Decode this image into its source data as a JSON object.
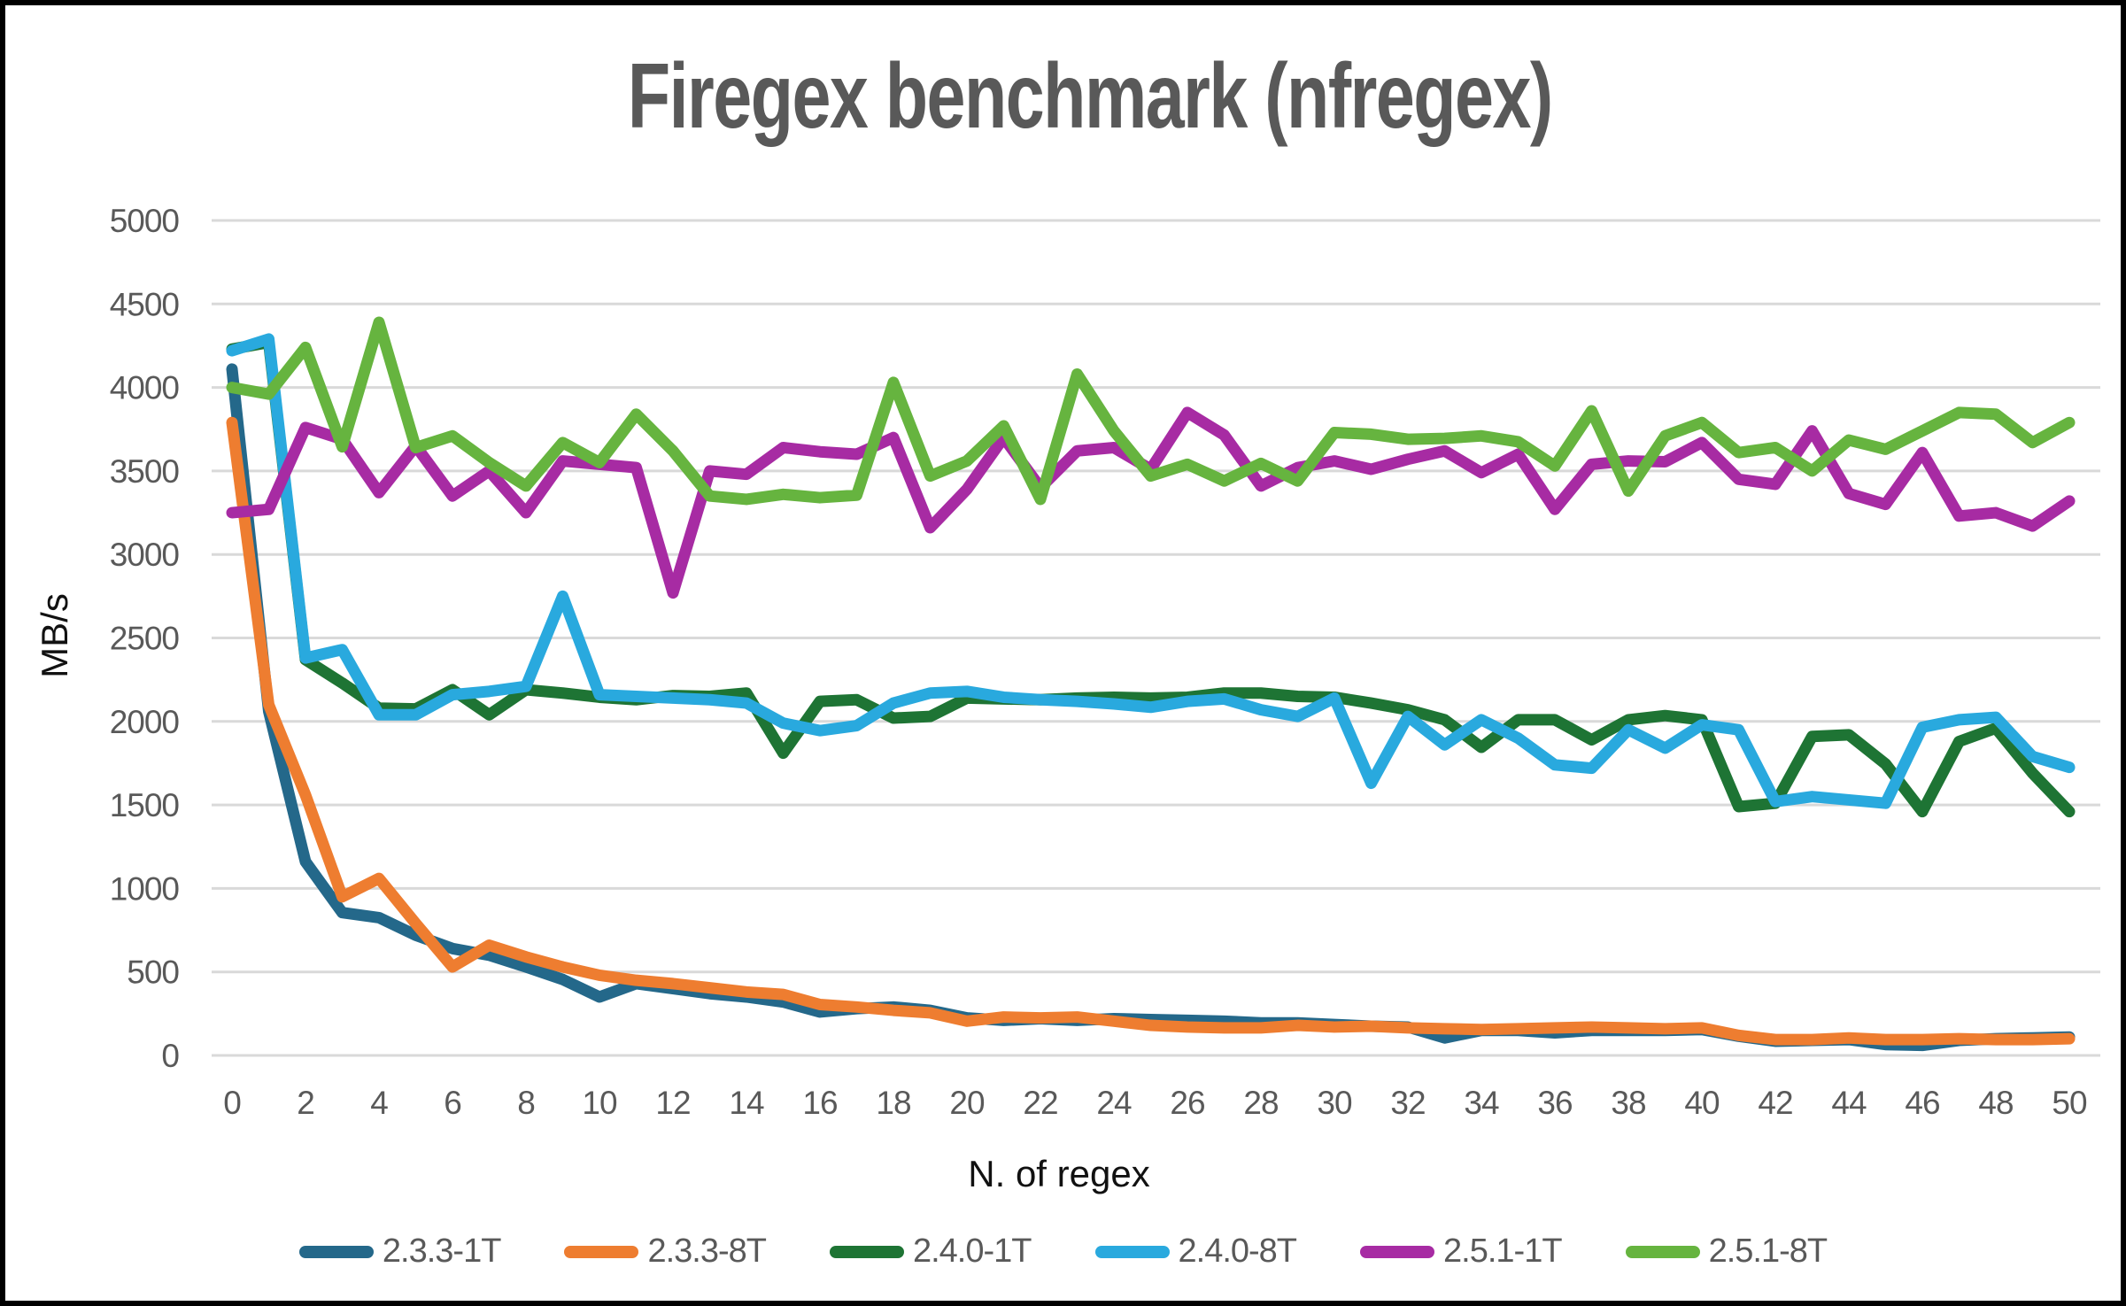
{
  "title": "Firegex benchmark (nfregex)",
  "colors": {
    "background": "#FFFFFF",
    "frame": "#000000",
    "grid": "#D9D9D9",
    "tick_text": "#595959",
    "title_text": "#595959",
    "axis_title_text": "#111111",
    "legend_text": "#595959"
  },
  "chart_data": {
    "type": "line",
    "title": "Firegex benchmark (nfregex)",
    "xlabel": "N. of regex",
    "ylabel": "MB/s",
    "xlim": [
      0,
      50
    ],
    "ylim": [
      0,
      5000
    ],
    "grid": "horizontal",
    "legend_position": "bottom",
    "x_ticks": [
      0,
      2,
      4,
      6,
      8,
      10,
      12,
      14,
      16,
      18,
      20,
      22,
      24,
      26,
      28,
      30,
      32,
      34,
      36,
      38,
      40,
      42,
      44,
      46,
      48,
      50
    ],
    "y_ticks": [
      0,
      500,
      1000,
      1500,
      2000,
      2500,
      3000,
      3500,
      4000,
      4500,
      5000
    ],
    "x": [
      0,
      1,
      2,
      3,
      4,
      5,
      6,
      7,
      8,
      9,
      10,
      11,
      12,
      13,
      14,
      15,
      16,
      17,
      18,
      19,
      20,
      21,
      22,
      23,
      24,
      25,
      26,
      27,
      28,
      29,
      30,
      31,
      32,
      33,
      34,
      35,
      36,
      37,
      38,
      39,
      40,
      41,
      42,
      43,
      44,
      45,
      46,
      47,
      48,
      49,
      50
    ],
    "series": [
      {
        "name": "2.3.3-1T",
        "color": "#24688A",
        "values": [
          4110,
          2060,
          1160,
          855,
          825,
          720,
          640,
          600,
          530,
          455,
          350,
          430,
          400,
          370,
          350,
          320,
          260,
          280,
          290,
          270,
          225,
          210,
          220,
          210,
          220,
          215,
          210,
          205,
          195,
          195,
          185,
          175,
          170,
          105,
          150,
          150,
          135,
          150,
          150,
          150,
          155,
          115,
          85,
          90,
          95,
          65,
          60,
          90,
          100,
          105,
          110
        ]
      },
      {
        "name": "2.3.3-8T",
        "color": "#EE7D30",
        "values": [
          3790,
          2100,
          1560,
          950,
          1060,
          790,
          530,
          660,
          590,
          530,
          480,
          450,
          430,
          405,
          380,
          365,
          305,
          290,
          270,
          255,
          205,
          230,
          225,
          230,
          205,
          180,
          170,
          165,
          165,
          180,
          170,
          175,
          165,
          160,
          155,
          160,
          165,
          170,
          165,
          160,
          165,
          120,
          95,
          95,
          105,
          95,
          95,
          100,
          95,
          95,
          100
        ]
      },
      {
        "name": "2.4.0-1T",
        "color": "#1E7434",
        "values": [
          4230,
          4270,
          2370,
          2230,
          2080,
          2075,
          2190,
          2040,
          2190,
          2170,
          2145,
          2130,
          2155,
          2150,
          2170,
          1810,
          2120,
          2130,
          2020,
          2030,
          2140,
          2135,
          2130,
          2140,
          2145,
          2140,
          2145,
          2170,
          2170,
          2150,
          2145,
          2110,
          2070,
          2010,
          1845,
          2010,
          2010,
          1890,
          2010,
          2035,
          2010,
          1490,
          1510,
          1910,
          1920,
          1745,
          1460,
          1880,
          1960,
          1690,
          1460
        ]
      },
      {
        "name": "2.4.0-8T",
        "color": "#29A9DE",
        "values": [
          4220,
          4290,
          2380,
          2430,
          2040,
          2040,
          2160,
          2180,
          2210,
          2750,
          2160,
          2150,
          2140,
          2130,
          2110,
          1990,
          1945,
          1975,
          2110,
          2170,
          2180,
          2145,
          2130,
          2120,
          2105,
          2085,
          2120,
          2135,
          2070,
          2030,
          2140,
          1630,
          2030,
          1860,
          2010,
          1900,
          1740,
          1720,
          1950,
          1840,
          1980,
          1950,
          1520,
          1550,
          1530,
          1510,
          1965,
          2010,
          2025,
          1790,
          1725
        ]
      },
      {
        "name": "2.5.1-1T",
        "color": "#A72BA3",
        "values": [
          3250,
          3270,
          3760,
          3690,
          3370,
          3650,
          3350,
          3500,
          3250,
          3560,
          3540,
          3520,
          2770,
          3500,
          3480,
          3640,
          3615,
          3600,
          3700,
          3160,
          3390,
          3700,
          3400,
          3620,
          3640,
          3510,
          3850,
          3715,
          3410,
          3520,
          3560,
          3510,
          3570,
          3620,
          3490,
          3600,
          3270,
          3540,
          3560,
          3555,
          3670,
          3450,
          3420,
          3740,
          3365,
          3300,
          3610,
          3230,
          3250,
          3170,
          3320
        ]
      },
      {
        "name": "2.5.1-8T",
        "color": "#66B43F",
        "values": [
          4000,
          3960,
          4240,
          3645,
          4390,
          3640,
          3710,
          3550,
          3410,
          3670,
          3550,
          3840,
          3620,
          3350,
          3330,
          3360,
          3340,
          3355,
          4030,
          3470,
          3560,
          3770,
          3330,
          4080,
          3740,
          3470,
          3540,
          3440,
          3545,
          3440,
          3730,
          3720,
          3690,
          3695,
          3710,
          3675,
          3530,
          3860,
          3380,
          3710,
          3790,
          3610,
          3640,
          3500,
          3685,
          3630,
          3740,
          3850,
          3840,
          3670,
          3790
        ]
      }
    ]
  }
}
